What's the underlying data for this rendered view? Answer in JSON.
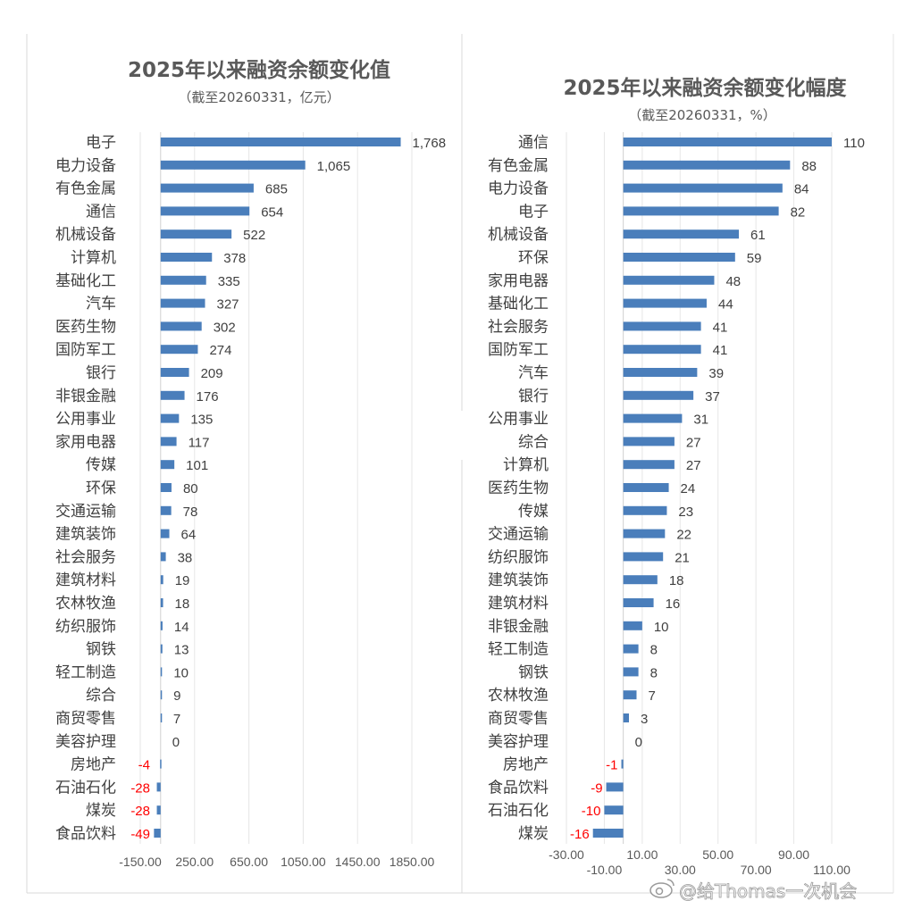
{
  "colors": {
    "bar": "#4a7ebb",
    "negative_label": "#ff0000",
    "text": "#404040",
    "grid": "#e6e6e6"
  },
  "watermark": {
    "text": "@给Thomas一次机会",
    "icon": "weibo-logo-icon"
  },
  "chart_data": [
    {
      "type": "bar",
      "orientation": "horizontal",
      "title": "2025年以来融资余额变化值",
      "subtitle": "（截至20260331，亿元）",
      "categories": [
        "电子",
        "电力设备",
        "有色金属",
        "通信",
        "机械设备",
        "计算机",
        "基础化工",
        "汽车",
        "医药生物",
        "国防军工",
        "银行",
        "非银金融",
        "公用事业",
        "家用电器",
        "传媒",
        "环保",
        "交通运输",
        "建筑装饰",
        "社会服务",
        "建筑材料",
        "农林牧渔",
        "纺织服饰",
        "钢铁",
        "轻工制造",
        "综合",
        "商贸零售",
        "美容护理",
        "房地产",
        "石油石化",
        "煤炭",
        "食品饮料"
      ],
      "values": [
        1768,
        1065,
        685,
        654,
        522,
        378,
        335,
        327,
        302,
        274,
        209,
        176,
        135,
        117,
        101,
        80,
        78,
        64,
        38,
        19,
        18,
        14,
        13,
        10,
        9,
        7,
        0,
        -4,
        -28,
        -28,
        -49
      ],
      "value_labels": [
        "1,768",
        "1,065",
        "685",
        "654",
        "522",
        "378",
        "335",
        "327",
        "302",
        "274",
        "209",
        "176",
        "135",
        "117",
        "101",
        "80",
        "78",
        "64",
        "38",
        "19",
        "18",
        "14",
        "13",
        "10",
        "9",
        "7",
        "0",
        "-4",
        "-28",
        "-28",
        "-49"
      ],
      "xlim": [
        -150,
        1850
      ],
      "xticks": [
        -150,
        250,
        650,
        1050,
        1450,
        1850
      ],
      "xtick_labels": [
        "-150.00",
        "250.00",
        "650.00",
        "1050.00",
        "1450.00",
        "1850.00"
      ],
      "grid": true
    },
    {
      "type": "bar",
      "orientation": "horizontal",
      "title": "2025年以来融资余额变化幅度",
      "subtitle": "（截至20260331，%）",
      "categories": [
        "通信",
        "有色金属",
        "电力设备",
        "电子",
        "机械设备",
        "环保",
        "家用电器",
        "基础化工",
        "社会服务",
        "国防军工",
        "汽车",
        "银行",
        "公用事业",
        "综合",
        "计算机",
        "医药生物",
        "传媒",
        "交通运输",
        "纺织服饰",
        "建筑装饰",
        "建筑材料",
        "非银金融",
        "轻工制造",
        "钢铁",
        "农林牧渔",
        "商贸零售",
        "美容护理",
        "房地产",
        "食品饮料",
        "石油石化",
        "煤炭"
      ],
      "values": [
        110,
        88,
        84,
        82,
        61,
        59,
        48,
        44,
        41,
        41,
        39,
        37,
        31,
        27,
        27,
        24,
        23,
        22,
        21,
        18,
        16,
        10,
        8,
        8,
        7,
        3,
        0,
        -1,
        -9,
        -10,
        -16
      ],
      "value_labels": [
        "110",
        "88",
        "84",
        "82",
        "61",
        "59",
        "48",
        "44",
        "41",
        "41",
        "39",
        "37",
        "31",
        "27",
        "27",
        "24",
        "23",
        "22",
        "21",
        "18",
        "16",
        "10",
        "8",
        "8",
        "7",
        "3",
        "0",
        "-1",
        "-9",
        "-10",
        "-16"
      ],
      "xlim": [
        -30,
        110
      ],
      "xticks": [
        -30,
        -10,
        10,
        30,
        50,
        70,
        90,
        110
      ],
      "xtick_labels": [
        "-30.00",
        "-10.00",
        "10.00",
        "30.00",
        "50.00",
        "70.00",
        "90.00",
        "110.00"
      ],
      "grid": true
    }
  ]
}
